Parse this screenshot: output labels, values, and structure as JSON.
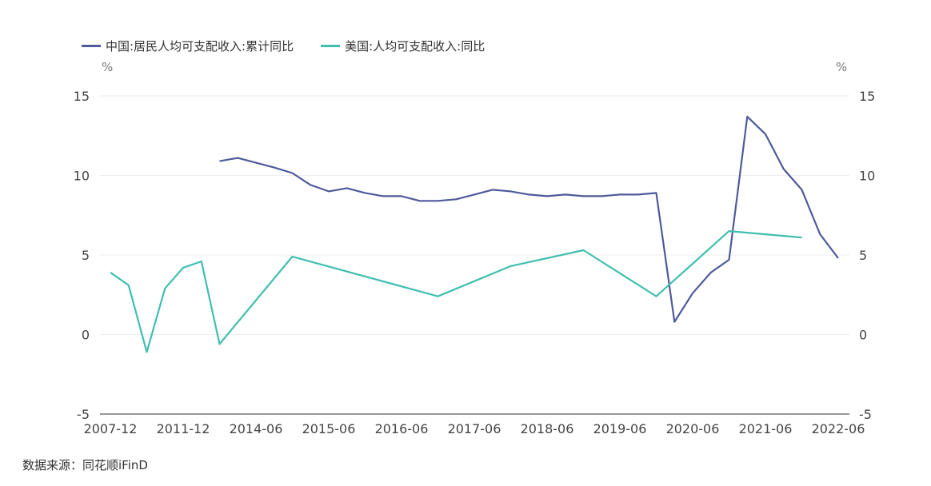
{
  "chart_data": {
    "type": "line",
    "title": "",
    "left_unit": "%",
    "right_unit": "%",
    "ylim": [
      -5,
      15
    ],
    "yticks": [
      -5,
      0,
      5,
      10,
      15
    ],
    "grid": true,
    "legend_position": "top-left",
    "x": [
      "2007-12",
      "2008-12",
      "2009-12",
      "2010-12",
      "2011-12",
      "2012-12",
      "2013-12",
      "2014-03",
      "2014-06",
      "2014-09",
      "2014-12",
      "2015-03",
      "2015-06",
      "2015-09",
      "2015-12",
      "2016-03",
      "2016-06",
      "2016-09",
      "2016-12",
      "2017-03",
      "2017-06",
      "2017-09",
      "2017-12",
      "2018-03",
      "2018-06",
      "2018-09",
      "2018-12",
      "2019-03",
      "2019-06",
      "2019-09",
      "2019-12",
      "2020-03",
      "2020-06",
      "2020-09",
      "2020-12",
      "2021-03",
      "2021-06",
      "2021-09",
      "2021-12",
      "2022-03",
      "2022-06"
    ],
    "xtick_labels": [
      "2007-12",
      "2011-12",
      "2014-06",
      "2015-06",
      "2016-06",
      "2017-06",
      "2018-06",
      "2019-06",
      "2020-06",
      "2021-06",
      "2022-06"
    ],
    "series": [
      {
        "name": "中国:居民人均可支配收入:累计同比",
        "color": "#4e5a9a",
        "values": [
          null,
          null,
          null,
          null,
          null,
          null,
          10.9,
          11.1,
          10.8,
          10.5,
          10.15,
          9.4,
          9.0,
          9.2,
          8.9,
          8.7,
          8.7,
          8.4,
          8.4,
          8.5,
          8.8,
          9.1,
          9.0,
          8.8,
          8.7,
          8.8,
          8.7,
          8.7,
          8.8,
          8.8,
          8.9,
          0.8,
          2.6,
          3.9,
          4.7,
          13.7,
          12.6,
          10.4,
          9.1,
          6.3,
          4.8
        ]
      },
      {
        "name": "美国:人均可支配收入:同比",
        "color": "#3fbfb0",
        "values": [
          3.9,
          3.1,
          -1.1,
          2.9,
          4.2,
          4.6,
          -0.6,
          null,
          null,
          null,
          4.9,
          null,
          null,
          null,
          null,
          null,
          null,
          null,
          2.4,
          null,
          null,
          null,
          4.3,
          null,
          null,
          null,
          5.3,
          null,
          null,
          null,
          2.4,
          null,
          null,
          null,
          6.5,
          null,
          null,
          null,
          6.1,
          null,
          null
        ]
      }
    ]
  },
  "source": "数据来源：同花顺iFinD"
}
